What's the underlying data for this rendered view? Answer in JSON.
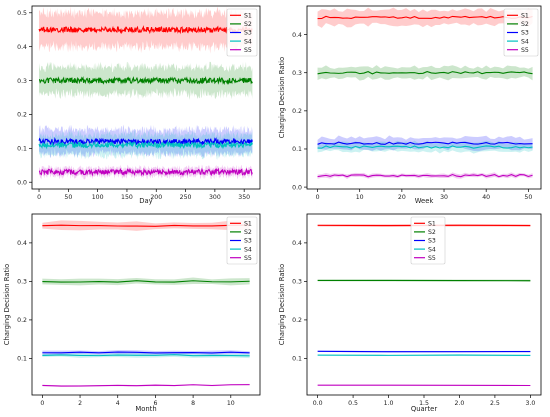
{
  "chart_data": [
    {
      "type": "line",
      "xlabel": "Day",
      "ylabel": "",
      "xlim": [
        -12,
        377
      ],
      "ylim": [
        -0.02,
        0.52
      ],
      "xticks": [
        0,
        50,
        100,
        150,
        200,
        250,
        300,
        350
      ],
      "yticks": [
        0.0,
        0.1,
        0.2,
        0.3,
        0.4,
        0.5
      ],
      "ytick_decimals": 1,
      "n_points": 365,
      "x_start": 0,
      "x_end": 364,
      "noise": 0.008,
      "legend": "top-right",
      "series": [
        {
          "name": "S1",
          "color": "#ff0000",
          "mean": 0.45,
          "band": 0.05
        },
        {
          "name": "S2",
          "color": "#008000",
          "mean": 0.3,
          "band": 0.04
        },
        {
          "name": "S3",
          "color": "#0000ff",
          "mean": 0.12,
          "band": 0.035
        },
        {
          "name": "S4",
          "color": "#00c0c0",
          "mean": 0.11,
          "band": 0.03
        },
        {
          "name": "S5",
          "color": "#c000c0",
          "mean": 0.03,
          "band": 0.012
        }
      ]
    },
    {
      "type": "line",
      "xlabel": "Week",
      "ylabel": "Charging Decision Ratio",
      "xlim": [
        -2.5,
        53
      ],
      "ylim": [
        -0.005,
        0.475
      ],
      "xticks": [
        0,
        10,
        20,
        30,
        40,
        50
      ],
      "yticks": [
        0.0,
        0.1,
        0.2,
        0.3,
        0.4
      ],
      "ytick_decimals": 1,
      "n_points": 52,
      "x_start": 0,
      "x_end": 51,
      "noise": 0.003,
      "legend": "top-right",
      "series": [
        {
          "name": "S1",
          "color": "#ff0000",
          "mean": 0.445,
          "band": 0.02
        },
        {
          "name": "S2",
          "color": "#008000",
          "mean": 0.3,
          "band": 0.015
        },
        {
          "name": "S3",
          "color": "#0000ff",
          "mean": 0.115,
          "band": 0.015
        },
        {
          "name": "S4",
          "color": "#00c0c0",
          "mean": 0.105,
          "band": 0.012
        },
        {
          "name": "S5",
          "color": "#c000c0",
          "mean": 0.03,
          "band": 0.005
        }
      ]
    },
    {
      "type": "line",
      "xlabel": "Month",
      "ylabel": "Charging Decision Ratio",
      "xlim": [
        -0.55,
        11.55
      ],
      "ylim": [
        0.005,
        0.475
      ],
      "xticks": [
        0,
        2,
        4,
        6,
        8,
        10
      ],
      "yticks": [
        0.1,
        0.2,
        0.3,
        0.4
      ],
      "ytick_decimals": 1,
      "n_points": 12,
      "x_start": 0,
      "x_end": 11,
      "noise": 0.002,
      "legend": "top-right",
      "series": [
        {
          "name": "S1",
          "color": "#ff0000",
          "mean": 0.445,
          "band": 0.01
        },
        {
          "name": "S2",
          "color": "#008000",
          "mean": 0.3,
          "band": 0.008
        },
        {
          "name": "S3",
          "color": "#0000ff",
          "mean": 0.115,
          "band": 0.005
        },
        {
          "name": "S4",
          "color": "#00c0c0",
          "mean": 0.108,
          "band": 0.005
        },
        {
          "name": "S5",
          "color": "#c000c0",
          "mean": 0.03,
          "band": 0.002
        }
      ]
    },
    {
      "type": "line",
      "xlabel": "Quarter",
      "ylabel": "Charging Decision Ratio",
      "xlim": [
        -0.15,
        3.15
      ],
      "ylim": [
        0.005,
        0.475
      ],
      "xticks": [
        0.0,
        0.5,
        1.0,
        1.5,
        2.0,
        2.5,
        3.0
      ],
      "xtick_decimals": 1,
      "yticks": [
        0.1,
        0.2,
        0.3,
        0.4
      ],
      "ytick_decimals": 1,
      "n_points": 4,
      "x_start": 0,
      "x_end": 3,
      "noise": 0.0008,
      "legend": "top-center",
      "series": [
        {
          "name": "S1",
          "color": "#ff0000",
          "mean": 0.445,
          "band": 0.003
        },
        {
          "name": "S2",
          "color": "#008000",
          "mean": 0.302,
          "band": 0.003
        },
        {
          "name": "S3",
          "color": "#0000ff",
          "mean": 0.118,
          "band": 0.002
        },
        {
          "name": "S4",
          "color": "#00c0c0",
          "mean": 0.108,
          "band": 0.002
        },
        {
          "name": "S5",
          "color": "#c000c0",
          "mean": 0.03,
          "band": 0.001
        }
      ]
    }
  ]
}
